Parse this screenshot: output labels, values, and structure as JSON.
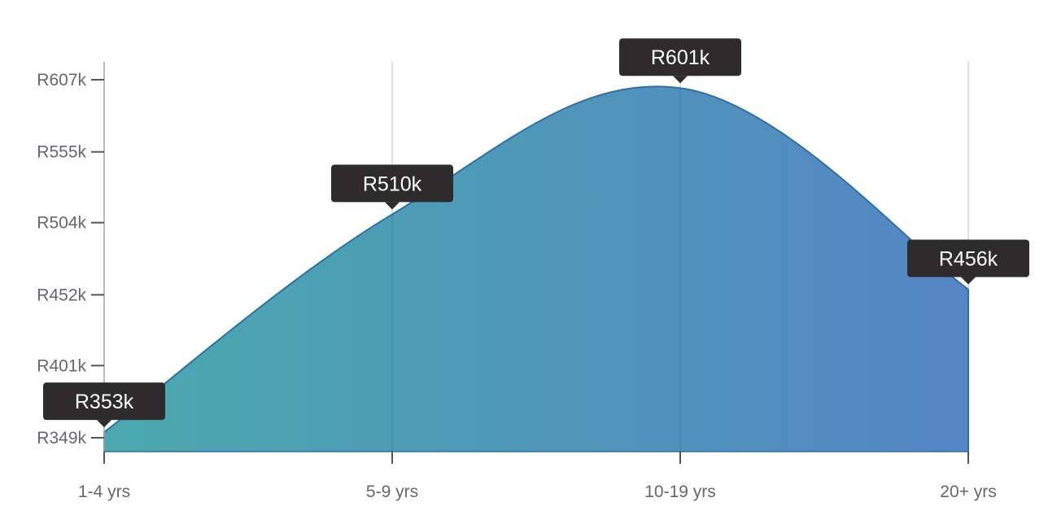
{
  "chart_data": {
    "type": "area",
    "categories": [
      "1-4 yrs",
      "5-9 yrs",
      "10-19 yrs",
      "20+ yrs"
    ],
    "values": [
      353,
      510,
      601,
      456
    ],
    "value_labels": [
      "R353k",
      "R510k",
      "R601k",
      "R456k"
    ],
    "yticks": [
      349,
      401,
      452,
      504,
      555,
      607
    ],
    "ytick_labels": [
      "R349k",
      "R401k",
      "R452k",
      "R504k",
      "R555k",
      "R607k"
    ],
    "ylim": [
      349,
      607
    ],
    "grid": "vertical",
    "legend": "none",
    "title": "",
    "xlabel": "",
    "ylabel": "",
    "colors": {
      "gradient_start": "#4aa9ae",
      "gradient_end": "#5485c4",
      "line": "#2e6fa8",
      "gridline": "#d5d5d5",
      "axis": "#555555",
      "label_bg": "#2d2b2b",
      "label_text": "#ffffff",
      "tick_text": "#66666e"
    }
  }
}
